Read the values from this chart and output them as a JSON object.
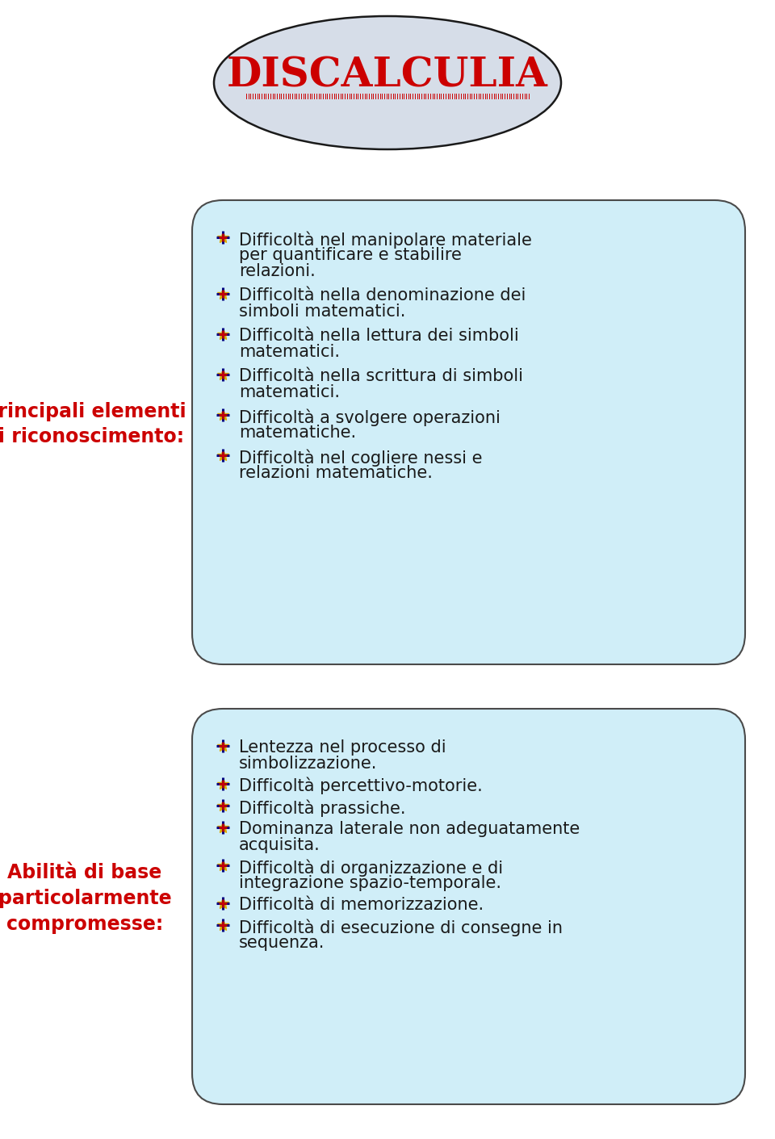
{
  "title": "DISCALCULIA",
  "title_color": "#cc0000",
  "title_underline_color": "#cc0000",
  "bg_color": "#ffffff",
  "ellipse_fill": "#d6dde8",
  "ellipse_stroke": "#1a1a1a",
  "box1_fill": "#d0eef8",
  "box1_stroke": "#4a4a4a",
  "box2_fill": "#d0eef8",
  "box2_stroke": "#4a4a4a",
  "label1_lines": [
    "Principali elementi",
    "di riconoscimento:"
  ],
  "label2_lines": [
    "Abilità di base",
    "particolarmente",
    "compromesse:"
  ],
  "label_color": "#cc0000",
  "box1_items": [
    "Difficoltà nel manipolare materiale\nper quantificare e stabilire\nrelazioni.",
    "Difficoltà nella denominazione dei\nsimboli matematici.",
    "Difficoltà nella lettura dei simboli\nmatematici.",
    "Difficoltà nella scrittura di simboli\nmatematici.",
    "Difficoltà a svolgere operazioni\nmatematiche.",
    "Difficoltà nel cogliere nessi e\nrelazioni matematiche."
  ],
  "box2_items": [
    "Lentezza nel processo di\nsimbolizzazione.",
    "Difficoltà percettivo-motorie.",
    "Difficoltà prassiche.",
    "Dominanza laterale non adeguatamente\nacquisita.",
    "Difficoltà di organizzazione e di\nintegrazione spazio-temporale.",
    "Difficoltà di memorizzazione.",
    "Difficoltà di esecuzione di consegne in\nsequenza."
  ],
  "text_color": "#1a1a1a",
  "font_size_title": 36,
  "font_size_label": 17,
  "font_size_items": 15
}
